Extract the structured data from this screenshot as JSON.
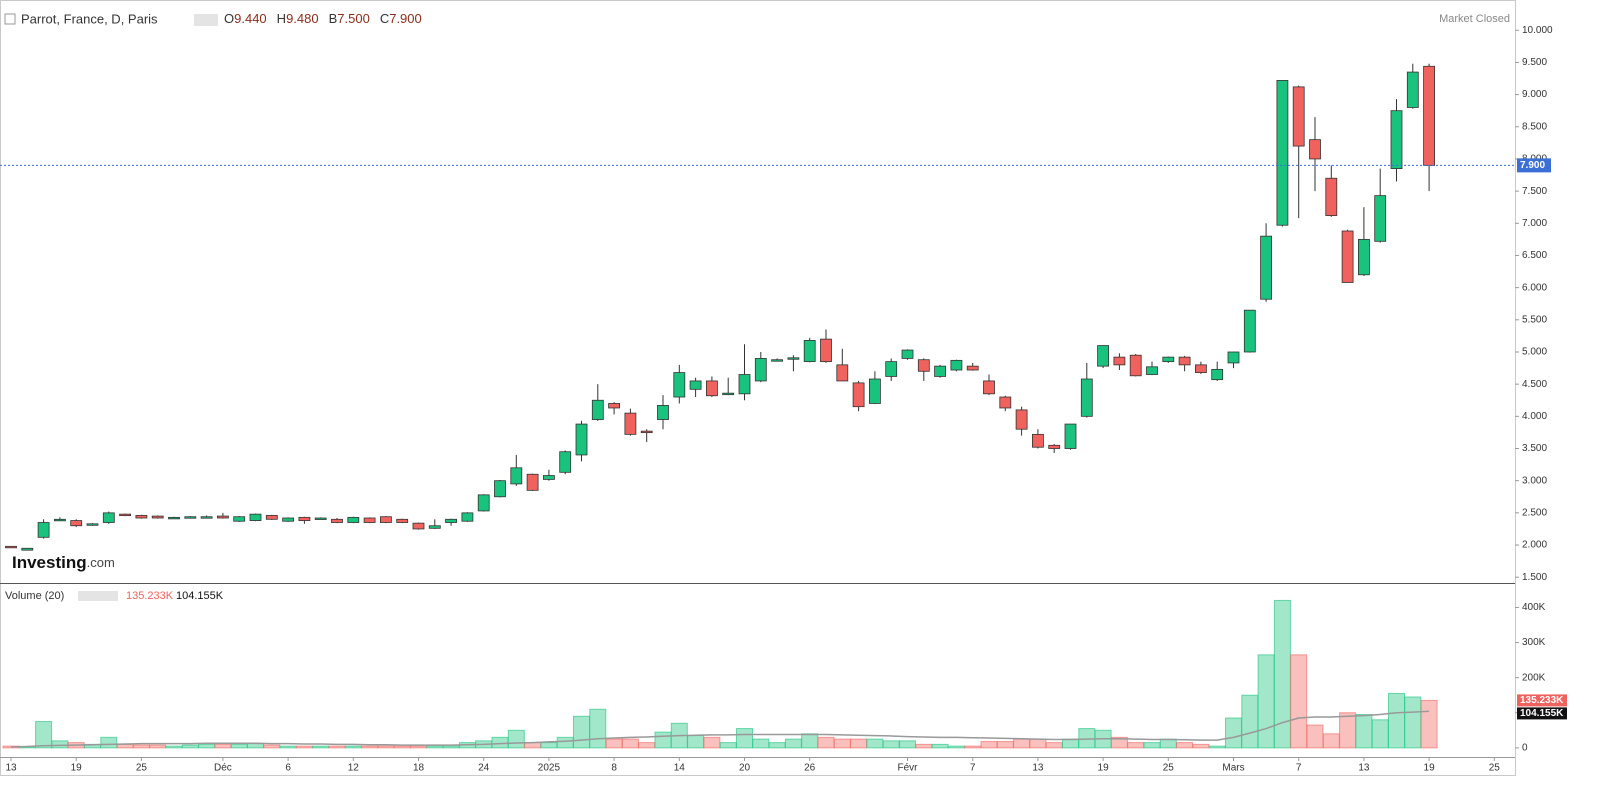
{
  "chart_data": [
    {
      "type": "candlestick",
      "title": "Parrot, France, D, Paris",
      "status": "Market Closed",
      "legend": [
        {
          "key": "O",
          "value": "9.440"
        },
        {
          "key": "H",
          "value": "9.480"
        },
        {
          "key": "B",
          "value": "7.500"
        },
        {
          "key": "C",
          "value": "7.900"
        }
      ],
      "last_close_label": "7.900",
      "logo": {
        "name": "Investing",
        "suffix": ".com"
      },
      "up_color": "#19c37d",
      "down_color": "#f0625d",
      "price_line_color": "#3b6fd6",
      "ylim": [
        1.41,
        10.47
      ],
      "yticks": [
        {
          "value": 1.5,
          "label": "1.500"
        },
        {
          "value": 2,
          "label": "2.000"
        },
        {
          "value": 2.5,
          "label": "2.500"
        },
        {
          "value": 3,
          "label": "3.000"
        },
        {
          "value": 3.5,
          "label": "3.500"
        },
        {
          "value": 4,
          "label": "4.000"
        },
        {
          "value": 4.5,
          "label": "4.500"
        },
        {
          "value": 5,
          "label": "5.000"
        },
        {
          "value": 5.5,
          "label": "5.500"
        },
        {
          "value": 6,
          "label": "6.000"
        },
        {
          "value": 6.5,
          "label": "6.500"
        },
        {
          "value": 7,
          "label": "7.000"
        },
        {
          "value": 7.5,
          "label": "7.500"
        },
        {
          "value": 8,
          "label": "8.000"
        },
        {
          "value": 8.5,
          "label": "8.500"
        },
        {
          "value": 9,
          "label": "9.000"
        },
        {
          "value": 9.5,
          "label": "9.500"
        },
        {
          "value": 10,
          "label": "10.000"
        }
      ],
      "open": [
        1.98,
        1.92,
        2.12,
        2.4,
        2.38,
        2.31,
        2.35,
        2.48,
        2.46,
        2.45,
        2.43,
        2.44,
        2.44,
        2.45,
        2.37,
        2.38,
        2.46,
        2.37,
        2.43,
        2.42,
        2.4,
        2.35,
        2.42,
        2.44,
        2.4,
        2.34,
        2.26,
        2.35,
        2.37,
        2.53,
        2.75,
        2.95,
        3.1,
        3.02,
        3.13,
        3.4,
        3.95,
        4.2,
        4.05,
        3.77,
        3.95,
        4.3,
        4.42,
        4.55,
        4.35,
        4.35,
        4.55,
        4.88,
        4.9,
        4.85,
        5.2,
        4.8,
        4.52,
        4.2,
        4.62,
        4.9,
        4.88,
        4.62,
        4.72,
        4.78,
        4.55,
        4.3,
        4.1,
        3.72,
        3.55,
        3.5,
        4.0,
        4.78,
        4.92,
        4.95,
        4.65,
        4.85,
        4.92,
        4.8,
        4.57,
        4.83,
        5.0,
        5.82,
        6.97,
        9.12,
        8.3,
        7.7,
        6.88,
        6.2,
        6.72,
        7.85,
        8.8,
        9.44,
        null,
        null,
        null,
        null,
        null
      ],
      "high": [
        1.98,
        1.95,
        2.4,
        2.43,
        2.4,
        2.34,
        2.52,
        2.49,
        2.47,
        2.46,
        2.44,
        2.45,
        2.46,
        2.5,
        2.45,
        2.49,
        2.47,
        2.43,
        2.44,
        2.43,
        2.42,
        2.44,
        2.43,
        2.45,
        2.41,
        2.35,
        2.4,
        2.41,
        2.51,
        2.79,
        3.01,
        3.4,
        3.11,
        3.17,
        3.47,
        3.93,
        4.5,
        4.22,
        4.12,
        3.8,
        4.33,
        4.8,
        4.6,
        4.62,
        4.6,
        5.12,
        5.0,
        4.9,
        4.95,
        5.22,
        5.35,
        5.05,
        4.55,
        4.7,
        4.9,
        5.04,
        4.9,
        4.8,
        4.88,
        4.83,
        4.65,
        4.32,
        4.15,
        3.8,
        3.57,
        3.88,
        4.83,
        5.1,
        4.98,
        4.97,
        4.85,
        4.93,
        4.94,
        4.85,
        4.85,
        5.0,
        5.65,
        7.0,
        9.22,
        9.14,
        8.65,
        7.9,
        6.9,
        7.25,
        7.85,
        8.93,
        9.48,
        9.48,
        null,
        null,
        null,
        null,
        null
      ],
      "low": [
        1.96,
        1.92,
        2.1,
        2.37,
        2.28,
        2.3,
        2.33,
        2.45,
        2.41,
        2.41,
        2.42,
        2.43,
        2.43,
        2.41,
        2.36,
        2.37,
        2.39,
        2.36,
        2.33,
        2.41,
        2.34,
        2.34,
        2.34,
        2.34,
        2.34,
        2.24,
        2.25,
        2.3,
        2.36,
        2.52,
        2.74,
        2.92,
        2.84,
        3.0,
        3.1,
        3.3,
        3.93,
        4.03,
        3.7,
        3.6,
        3.8,
        4.2,
        4.3,
        4.3,
        4.33,
        4.25,
        4.53,
        4.86,
        4.7,
        4.84,
        4.83,
        4.55,
        4.08,
        4.19,
        4.55,
        4.88,
        4.55,
        4.6,
        4.7,
        4.71,
        4.33,
        4.08,
        3.7,
        3.5,
        3.43,
        3.48,
        3.98,
        4.75,
        4.72,
        4.62,
        4.64,
        4.83,
        4.7,
        4.66,
        4.55,
        4.75,
        4.99,
        5.78,
        6.95,
        7.08,
        7.5,
        7.1,
        6.08,
        6.18,
        6.7,
        7.65,
        8.78,
        7.5,
        null,
        null,
        null,
        null,
        null
      ],
      "close": [
        1.96,
        1.95,
        2.35,
        2.4,
        2.3,
        2.33,
        2.5,
        2.46,
        2.42,
        2.42,
        2.43,
        2.44,
        2.44,
        2.42,
        2.44,
        2.48,
        2.4,
        2.42,
        2.38,
        2.42,
        2.35,
        2.43,
        2.35,
        2.35,
        2.35,
        2.25,
        2.3,
        2.4,
        2.5,
        2.78,
        3.0,
        3.2,
        2.85,
        3.08,
        3.45,
        3.88,
        4.25,
        4.13,
        3.72,
        3.76,
        4.17,
        4.68,
        4.55,
        4.32,
        4.36,
        4.65,
        4.9,
        4.88,
        4.91,
        5.18,
        4.85,
        4.55,
        4.15,
        4.58,
        4.85,
        5.03,
        4.7,
        4.78,
        4.87,
        4.72,
        4.35,
        4.13,
        3.8,
        3.52,
        3.5,
        3.88,
        4.58,
        5.1,
        4.8,
        4.63,
        4.77,
        4.92,
        4.8,
        4.68,
        4.73,
        5.0,
        5.65,
        6.8,
        9.22,
        8.2,
        8.0,
        7.12,
        6.08,
        6.75,
        7.43,
        8.75,
        9.35,
        7.9,
        null,
        null,
        null,
        null,
        null
      ]
    },
    {
      "type": "bar",
      "title": "Volume (20)",
      "categories": [
        "13",
        null,
        null,
        null,
        "19",
        null,
        null,
        null,
        "25",
        null,
        null,
        null,
        null,
        "Déc",
        null,
        null,
        null,
        "6",
        null,
        null,
        null,
        "12",
        null,
        null,
        null,
        "18",
        null,
        null,
        null,
        "24",
        null,
        null,
        null,
        "2025",
        null,
        null,
        null,
        "8",
        null,
        null,
        null,
        "14",
        null,
        null,
        null,
        "20",
        null,
        null,
        null,
        "26",
        null,
        null,
        null,
        null,
        null,
        "Févr",
        null,
        null,
        null,
        "7",
        null,
        null,
        null,
        "13",
        null,
        null,
        null,
        "19",
        null,
        null,
        null,
        "25",
        null,
        null,
        null,
        "Mars",
        null,
        null,
        null,
        "7",
        null,
        null,
        null,
        "13",
        null,
        null,
        null,
        "19",
        null,
        null,
        null,
        "25",
        null
      ],
      "values": [
        5000,
        2000,
        75000,
        20000,
        15000,
        10000,
        30000,
        10000,
        8000,
        8000,
        5000,
        8000,
        10000,
        10000,
        10000,
        12000,
        8000,
        5000,
        5000,
        5000,
        5000,
        5000,
        5000,
        5000,
        5000,
        5000,
        5000,
        5000,
        15000,
        20000,
        30000,
        50000,
        15000,
        15000,
        30000,
        90000,
        110000,
        25000,
        25000,
        15000,
        45000,
        70000,
        35000,
        30000,
        15000,
        55000,
        25000,
        15000,
        25000,
        40000,
        30000,
        25000,
        25000,
        25000,
        20000,
        20000,
        10000,
        10000,
        5000,
        5000,
        18000,
        18000,
        25000,
        25000,
        15000,
        25000,
        55000,
        50000,
        30000,
        15000,
        15000,
        25000,
        15000,
        10000,
        5000,
        85000,
        150000,
        265000,
        420000,
        265000,
        65000,
        40000,
        100000,
        95000,
        80000,
        155000,
        145000,
        135233,
        null,
        null,
        null,
        null,
        null
      ],
      "last_value_label": "135.233K",
      "ma_values": [
        3000,
        4000,
        6000,
        7000,
        8000,
        9000,
        10000,
        11000,
        12000,
        12000,
        12000,
        12000,
        13000,
        13000,
        13000,
        13000,
        12000,
        12000,
        11000,
        11000,
        10000,
        10000,
        9000,
        9000,
        8000,
        8000,
        8000,
        8000,
        9000,
        10000,
        12000,
        14000,
        15000,
        17000,
        19000,
        22000,
        26000,
        28000,
        30000,
        31000,
        33000,
        35000,
        36000,
        37000,
        37000,
        38000,
        38000,
        38000,
        38000,
        38000,
        38000,
        37000,
        36000,
        35000,
        34000,
        32000,
        31000,
        30000,
        30000,
        29000,
        28000,
        27000,
        26000,
        25000,
        24000,
        24000,
        25000,
        26000,
        26000,
        25000,
        24000,
        24000,
        23000,
        22000,
        22000,
        30000,
        42000,
        55000,
        72000,
        85000,
        88000,
        88000,
        90000,
        92000,
        95000,
        100000,
        102000,
        104155,
        null,
        null,
        null,
        null,
        null
      ],
      "ma_last_value_label": "104.155K",
      "ma_color": "#999999",
      "ylim": [
        -26000,
        464000
      ],
      "yticks": [
        0,
        {
          "value": 100000,
          "label": "100K"
        },
        {
          "value": 200000,
          "label": "200K"
        },
        {
          "value": 300000,
          "label": "300K"
        },
        {
          "value": 400000,
          "label": "400K"
        }
      ]
    }
  ]
}
